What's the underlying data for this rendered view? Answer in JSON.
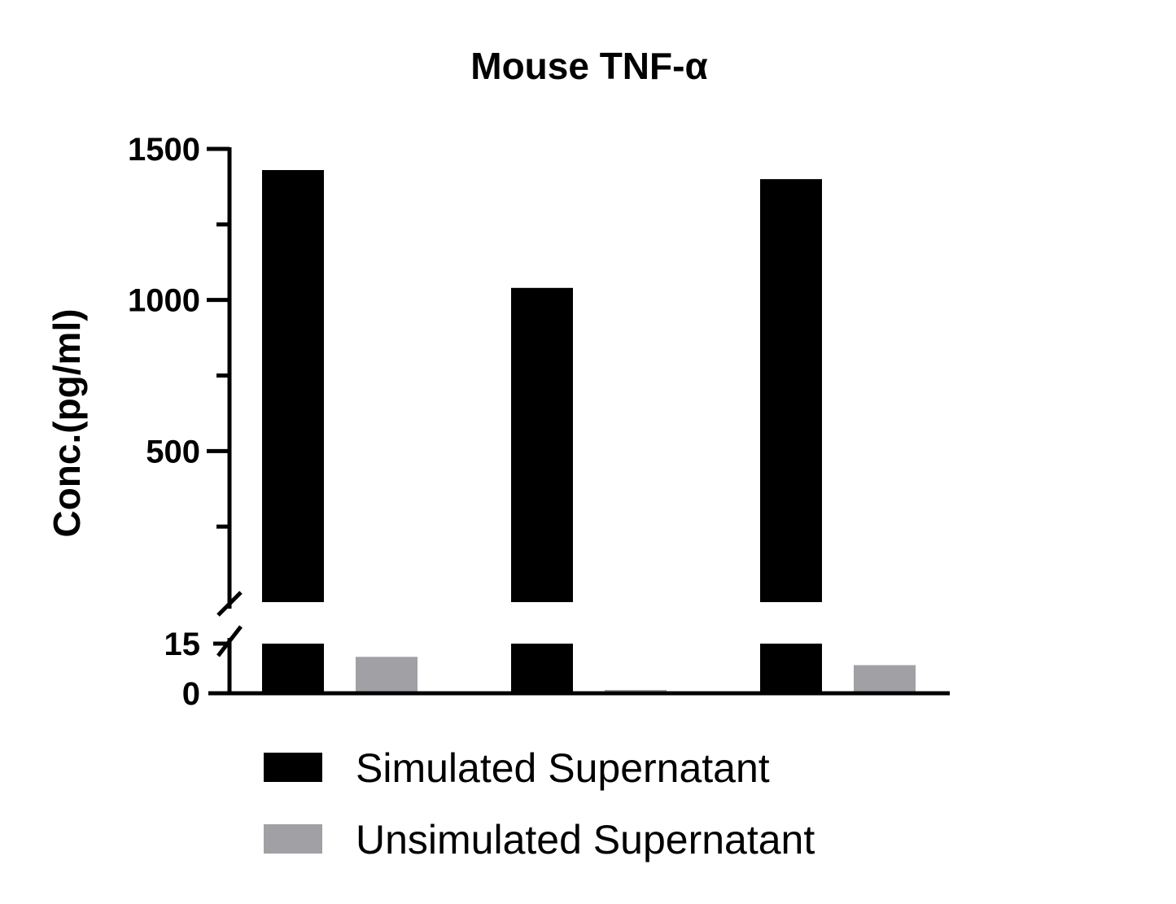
{
  "chart_data": {
    "type": "bar",
    "title": "Mouse TNF-α",
    "ylabel": "Conc.(pg/ml)",
    "xlabel": "",
    "categories": [
      "",
      "",
      ""
    ],
    "series": [
      {
        "name": "Simulated Supernatant",
        "color": "#000000",
        "values": [
          1430,
          1040,
          1400
        ]
      },
      {
        "name": "Unsimulated Supernatant",
        "color": "#a1a0a5",
        "values": [
          11,
          1,
          8.5
        ]
      }
    ],
    "y_axis": {
      "broken": true,
      "lower_segment": {
        "range": [
          0,
          15
        ],
        "ticks": [
          {
            "value": 0,
            "label": "0"
          },
          {
            "value": 15,
            "label": "15"
          }
        ]
      },
      "upper_segment": {
        "range": [
          0,
          1500
        ],
        "major_ticks": [
          {
            "value": 500,
            "label": "500"
          },
          {
            "value": 1000,
            "label": "1000"
          },
          {
            "value": 1500,
            "label": "1500"
          }
        ],
        "minor_ticks": [
          250,
          750,
          1250
        ]
      }
    },
    "grid": false,
    "legend": {
      "placement": "bottom"
    }
  }
}
